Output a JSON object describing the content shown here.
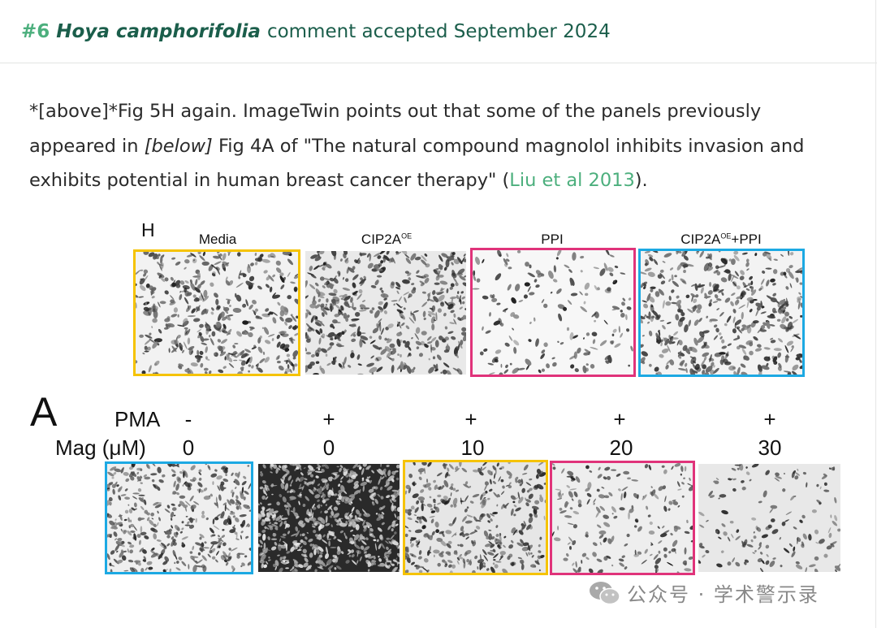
{
  "header": {
    "number": "#6",
    "species": "Hoya camphorifolia",
    "status": "comment accepted September 2024"
  },
  "paragraph": {
    "p1": "*[above]*Fig 5H again. ImageTwin points out that some of the panels previously appeared in ",
    "p2": "[below]",
    "p3": " Fig 4A of \"The natural compound magnolol inhibits invasion and exhibits potential in human breast cancer therapy\" (",
    "link": "Liu et al 2013",
    "p4": ")."
  },
  "figure_top": {
    "panel_label": "H",
    "columns": [
      {
        "title": "Media",
        "sup": "",
        "suffix": ""
      },
      {
        "title": "CIP2A",
        "sup": "OE",
        "suffix": ""
      },
      {
        "title": "PPI",
        "sup": "",
        "suffix": ""
      },
      {
        "title": "CIP2A",
        "sup": "OE",
        "suffix": "+PPI"
      }
    ],
    "highlight_colors": [
      "#f5c300",
      "none",
      "#e0337a",
      "#1ca9e3"
    ]
  },
  "figure_bottom": {
    "panel_label": "A",
    "pma_label": "PMA",
    "mag_label": "Mag (μM)",
    "pma_values": [
      "-",
      "+",
      "+",
      "+",
      "+"
    ],
    "mag_values": [
      "0",
      "0",
      "10",
      "20",
      "30"
    ],
    "highlight_colors": [
      "#1ca9e3",
      "none",
      "#f5c300",
      "#e0337a",
      "none"
    ]
  },
  "watermark": {
    "icon": "wechat-icon",
    "text": "公众号 · 学术警示录"
  }
}
